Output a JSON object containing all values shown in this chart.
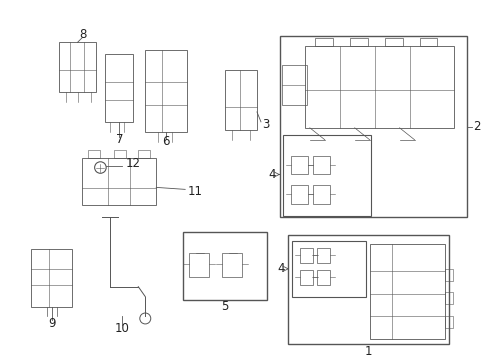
{
  "bg_color": "#ffffff",
  "line_color": "#555555",
  "label_color": "#222222",
  "font_size": 8.5,
  "fig_width": 4.89,
  "fig_height": 3.6,
  "dpi": 100
}
